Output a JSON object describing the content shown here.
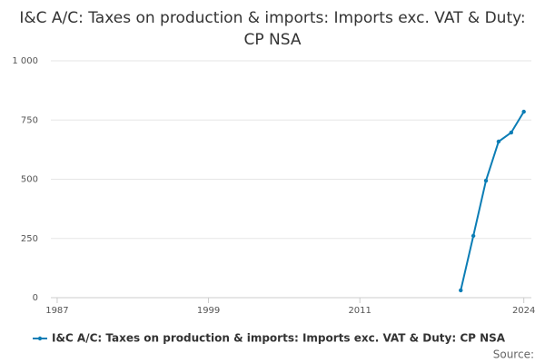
{
  "chart_data": {
    "type": "line",
    "title": "I&C A/C: Taxes on production & imports: Imports exc. VAT & Duty: CP NSA",
    "x": [
      2019,
      2020,
      2021,
      2022,
      2023,
      2024
    ],
    "series": [
      {
        "name": "I&C A/C: Taxes on production & imports: Imports exc. VAT & Duty: CP NSA",
        "color": "#0b7db5",
        "values": [
          31,
          261,
          494,
          659,
          697,
          785
        ]
      }
    ],
    "xlim": [
      1986.5,
      2024.6
    ],
    "xticks": [
      1987,
      1999,
      2011,
      2024
    ],
    "ylim": [
      0,
      1000
    ],
    "yticks": [
      0,
      250,
      500,
      750,
      {
        "value": 1000,
        "label": "1 000"
      }
    ],
    "grid": true,
    "source": "Source:"
  }
}
